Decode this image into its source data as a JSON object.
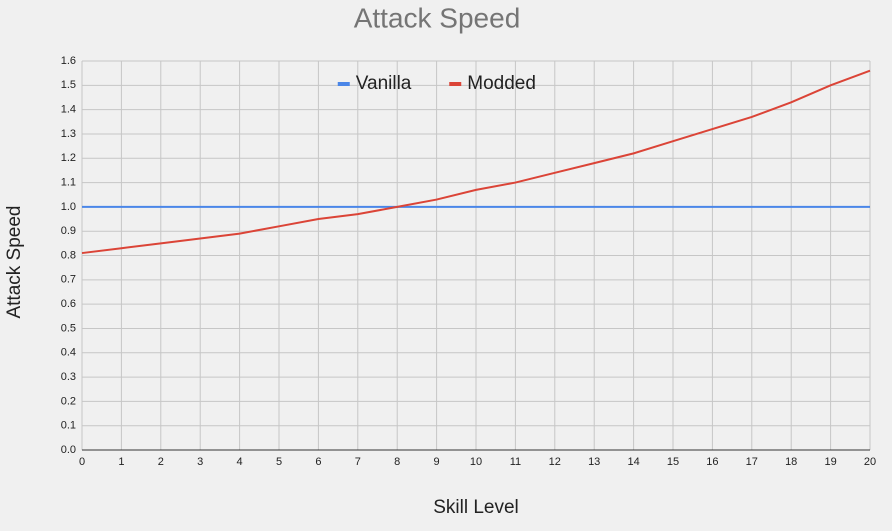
{
  "chart_data": {
    "type": "line",
    "title": "Attack Speed",
    "x_label": "Skill Level",
    "y_label": "Attack Speed",
    "x": [
      0,
      1,
      2,
      3,
      4,
      5,
      6,
      7,
      8,
      9,
      10,
      11,
      12,
      13,
      14,
      15,
      16,
      17,
      18,
      19,
      20
    ],
    "series": [
      {
        "name": "Vanilla",
        "color": "#4a86e8",
        "values": [
          1,
          1,
          1,
          1,
          1,
          1,
          1,
          1,
          1,
          1,
          1,
          1,
          1,
          1,
          1,
          1,
          1,
          1,
          1,
          1,
          1
        ]
      },
      {
        "name": "Modded",
        "color": "#db4437",
        "values": [
          0.81,
          0.83,
          0.85,
          0.87,
          0.89,
          0.92,
          0.95,
          0.97,
          1.0,
          1.03,
          1.07,
          1.1,
          1.14,
          1.18,
          1.22,
          1.27,
          1.32,
          1.37,
          1.43,
          1.5,
          1.56
        ]
      }
    ],
    "xlim": [
      0,
      20
    ],
    "xticks": [
      0,
      1,
      2,
      3,
      4,
      5,
      6,
      7,
      8,
      9,
      10,
      11,
      12,
      13,
      14,
      15,
      16,
      17,
      18,
      19,
      20
    ],
    "ylim": [
      0,
      1.6
    ],
    "yticks": [
      {
        "value": 0,
        "label": "0.0"
      },
      0.1,
      0.2,
      0.3,
      0.4,
      0.5,
      0.6,
      0.7,
      0.8,
      0.9,
      {
        "value": 1,
        "label": "1.0"
      },
      1.1,
      1.2,
      1.3,
      1.4,
      1.5,
      1.6
    ],
    "grid": true,
    "legend": "top"
  }
}
